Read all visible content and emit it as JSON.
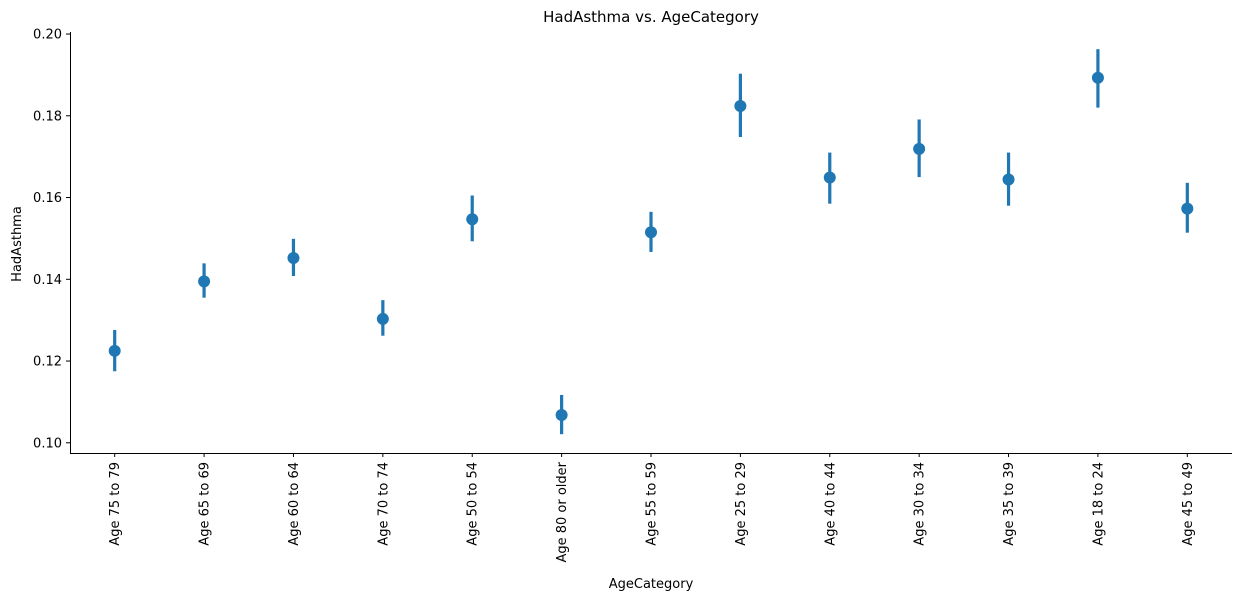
{
  "chart_data": {
    "type": "scatter",
    "subtype": "pointplot-with-error-bars",
    "title": "HadAsthma vs. AgeCategory",
    "xlabel": "AgeCategory",
    "ylabel": "HadAsthma",
    "color": "#1f77b4",
    "ylim": [
      0.0975,
      0.2005
    ],
    "yticks": [
      "0.10",
      "0.12",
      "0.14",
      "0.16",
      "0.18",
      "0.20"
    ],
    "grid": false,
    "categories": [
      "Age 75 to 79",
      "Age 65 to 69",
      "Age 60 to 64",
      "Age 70 to 74",
      "Age 50 to 54",
      "Age 80 or older",
      "Age 55 to 59",
      "Age 25 to 29",
      "Age 40 to 44",
      "Age 30 to 34",
      "Age 35 to 39",
      "Age 18 to 24",
      "Age 45 to 49"
    ],
    "series": [
      {
        "values": [
          0.1225,
          0.1395,
          0.1452,
          0.1303,
          0.1547,
          0.1068,
          0.1515,
          0.1824,
          0.1649,
          0.1719,
          0.1644,
          0.1893,
          0.1573
        ],
        "ci_low": [
          0.1175,
          0.1355,
          0.1408,
          0.1262,
          0.1493,
          0.1021,
          0.1467,
          0.1748,
          0.1585,
          0.165,
          0.158,
          0.182,
          0.1514
        ],
        "ci_high": [
          0.1276,
          0.1439,
          0.1499,
          0.1349,
          0.1605,
          0.1117,
          0.1565,
          0.1903,
          0.171,
          0.1791,
          0.171,
          0.1963,
          0.1636
        ]
      }
    ]
  }
}
